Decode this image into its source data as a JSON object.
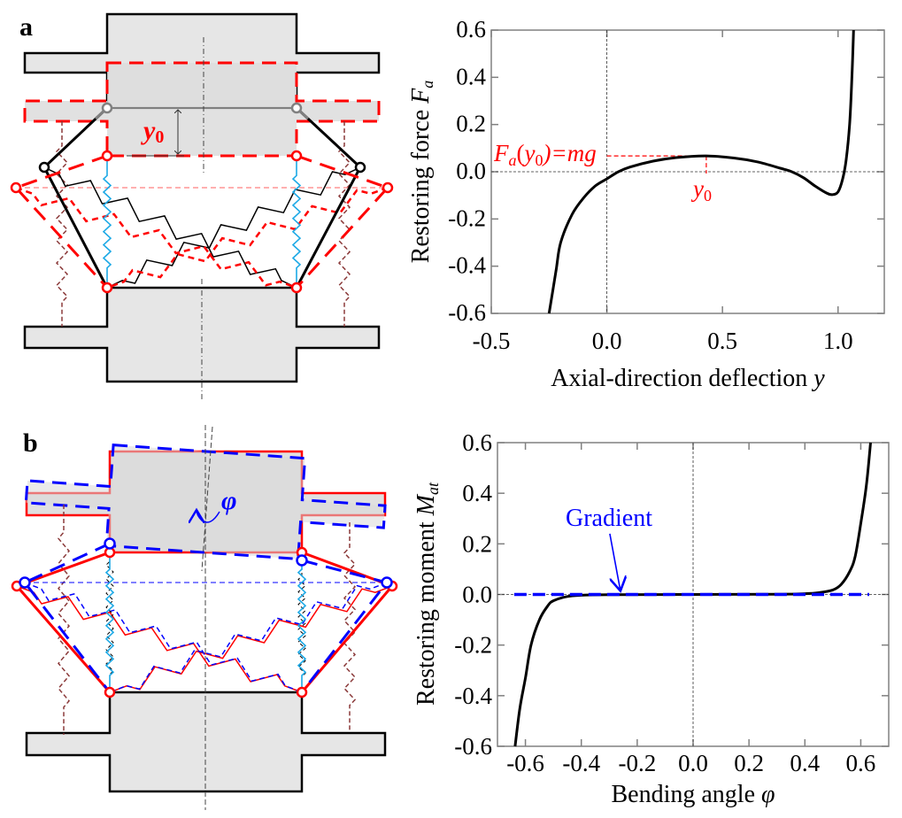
{
  "panels": {
    "a": {
      "label": "a",
      "displacement_symbol": "y",
      "displacement_sub": "0"
    },
    "b": {
      "label": "b",
      "angle_symbol": "φ"
    }
  },
  "colors": {
    "equilibrium": "#ff0000",
    "initial": "#000000",
    "rotated": "#0000ff",
    "vertical_spring": "#1ca9e6",
    "outer_spring": "#8b3a3a",
    "block_fill": "#e6e6e6"
  },
  "chart_data": [
    {
      "type": "line",
      "xlabel": {
        "text": "Axial-direction deflection ",
        "symbol": "y"
      },
      "ylabel": {
        "text": "Restoring force ",
        "symbol": "F",
        "subscript": "a"
      },
      "xlim": [
        -0.5,
        1.2
      ],
      "ylim": [
        -0.6,
        0.6
      ],
      "xticks": [
        -0.5,
        0.0,
        0.5,
        1.0
      ],
      "xtick_labels": [
        "-0.5",
        "0.0",
        "0.5",
        "1.0"
      ],
      "yticks": [
        -0.6,
        -0.4,
        -0.2,
        0.0,
        0.2,
        0.4,
        0.6
      ],
      "ytick_labels": [
        "-0.6",
        "-0.4",
        "-0.2",
        "0.0",
        "0.2",
        "0.4",
        "0.6"
      ],
      "grid": false,
      "reference_lines": {
        "x": 0,
        "y": 0
      },
      "series": [
        {
          "color": "#000000",
          "x": [
            -0.25,
            -0.22,
            -0.2,
            -0.15,
            -0.1,
            -0.05,
            0.0,
            0.05,
            0.1,
            0.2,
            0.3,
            0.43,
            0.55,
            0.65,
            0.75,
            0.8,
            0.85,
            0.9,
            0.95,
            0.975,
            1.0,
            1.02,
            1.035,
            1.05,
            1.06,
            1.067
          ],
          "y": [
            -0.6,
            -0.42,
            -0.3,
            -0.18,
            -0.11,
            -0.06,
            -0.03,
            0.0,
            0.02,
            0.045,
            0.06,
            0.067,
            0.058,
            0.042,
            0.015,
            0.0,
            -0.025,
            -0.06,
            -0.09,
            -0.097,
            -0.085,
            -0.03,
            0.05,
            0.2,
            0.4,
            0.6
          ]
        }
      ],
      "annotation": {
        "color": "#ff0000",
        "x": 0.43,
        "y": 0.067,
        "label": {
          "symbol": "F",
          "sub": "a",
          "open": "(",
          "arg": "y",
          "arg_sub": "0",
          "close": ")=mg"
        },
        "xmark": {
          "symbol": "y",
          "sub": "0"
        }
      }
    },
    {
      "type": "line",
      "xlabel": {
        "text": "Bending angle ",
        "symbol": "φ"
      },
      "ylabel": {
        "text": "Restoring moment ",
        "symbol": "M",
        "subscript": "at"
      },
      "xlim": [
        -0.7,
        0.7
      ],
      "ylim": [
        -0.6,
        0.6
      ],
      "xticks": [
        -0.6,
        -0.4,
        -0.2,
        0.0,
        0.2,
        0.4,
        0.6
      ],
      "xtick_labels": [
        "-0.6",
        "-0.4",
        "-0.2",
        "0.0",
        "0.2",
        "0.4",
        "0.6"
      ],
      "yticks": [
        -0.6,
        -0.4,
        -0.2,
        0.0,
        0.2,
        0.4,
        0.6
      ],
      "ytick_labels": [
        "-0.6",
        "-0.4",
        "-0.2",
        "0.0",
        "0.2",
        "0.4",
        "0.6"
      ],
      "grid": false,
      "reference_lines": {
        "x": 0,
        "y": 0
      },
      "series": [
        {
          "color": "#000000",
          "x": [
            -0.637,
            -0.62,
            -0.6,
            -0.58,
            -0.55,
            -0.52,
            -0.5,
            -0.45,
            -0.4,
            -0.3,
            0.0,
            0.3,
            0.4,
            0.45,
            0.5,
            0.53,
            0.56,
            0.58,
            0.6,
            0.62,
            0.635
          ],
          "y": [
            -0.6,
            -0.45,
            -0.33,
            -0.2,
            -0.1,
            -0.045,
            -0.025,
            -0.008,
            -0.003,
            -0.001,
            0.0,
            0.001,
            0.003,
            0.007,
            0.018,
            0.04,
            0.09,
            0.15,
            0.28,
            0.43,
            0.6
          ]
        },
        {
          "color": "#0000ff",
          "dashed": true,
          "x": [
            -0.64,
            0.63
          ],
          "y": [
            0.0,
            0.0
          ]
        }
      ],
      "annotation": {
        "color": "#0000ff",
        "text": "Gradient",
        "arrow_to": {
          "x": -0.26,
          "y": 0.0
        }
      }
    }
  ]
}
